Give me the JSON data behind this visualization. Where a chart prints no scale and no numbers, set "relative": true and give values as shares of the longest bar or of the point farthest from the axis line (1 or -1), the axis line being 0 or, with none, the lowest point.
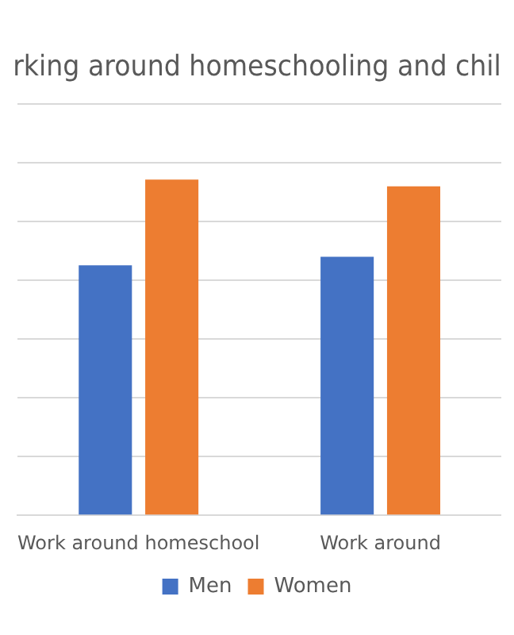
{
  "chart_data": {
    "type": "bar",
    "title": "rking around homeschooling and chil",
    "categories": [
      "Work around homeschool",
      "Work around"
    ],
    "series": [
      {
        "name": "Men",
        "color": "#4472c4",
        "values": [
          0.745,
          0.77
        ]
      },
      {
        "name": "Women",
        "color": "#ed7d31",
        "values": [
          1,
          0.98
        ]
      }
    ],
    "relative": true,
    "grid": true,
    "legend": "bottom"
  }
}
